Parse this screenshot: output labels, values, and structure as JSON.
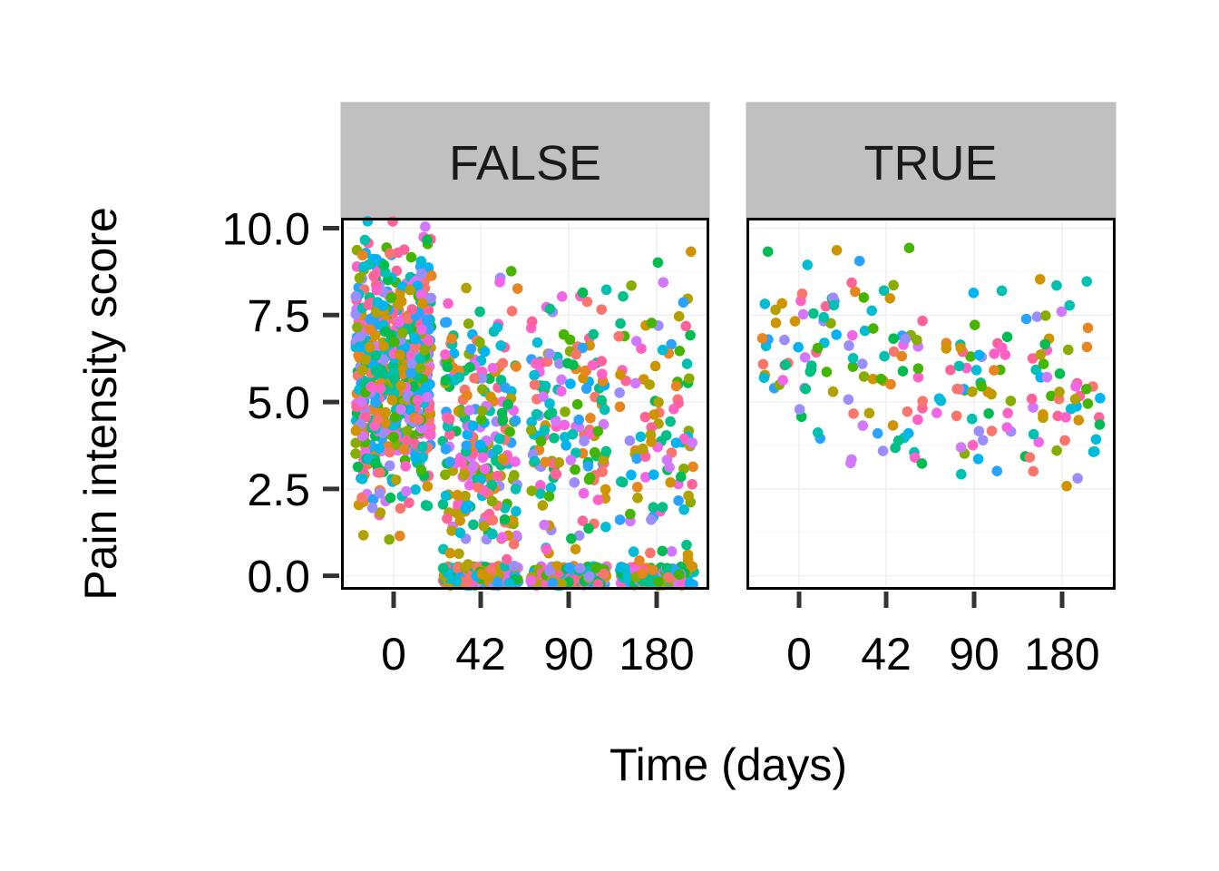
{
  "chart_data": {
    "type": "scatter",
    "jitter": true,
    "facet_by": "",
    "xlabel": "Time (days)",
    "ylabel": "Pain intensity score",
    "categories": [
      "0",
      "42",
      "90",
      "180"
    ],
    "y_ticks": [
      "0.0",
      "2.5",
      "5.0",
      "7.5",
      "10.0"
    ],
    "ylim": [
      -0.4,
      10.3
    ],
    "legend": "none",
    "grid": true,
    "colors": [
      "#F8766D",
      "#E7851E",
      "#D09400",
      "#B2A100",
      "#89AC00",
      "#45B500",
      "#00BC51",
      "#00C087",
      "#00C0B2",
      "#00BCD6",
      "#00B3F2",
      "#29A3FF",
      "#9C8DFF",
      "#D277FF",
      "#F166E8",
      "#FF61C7",
      "#FF6399"
    ],
    "panels": [
      {
        "strip": "FALSE",
        "groups": [
          {
            "x": "0",
            "n_points": 650,
            "y_range": [
              0.8,
              10.0
            ],
            "y_mean": 5.9,
            "y_sd": 1.8,
            "zero_fraction": 0.0
          },
          {
            "x": "42",
            "n_points": 420,
            "y_range": [
              0.0,
              9.0
            ],
            "y_mean": 3.6,
            "y_sd": 2.2,
            "zero_fraction": 0.42
          },
          {
            "x": "90",
            "n_points": 330,
            "y_range": [
              0.0,
              8.9
            ],
            "y_mean": 4.1,
            "y_sd": 2.3,
            "zero_fraction": 0.52
          },
          {
            "x": "180",
            "n_points": 240,
            "y_range": [
              0.0,
              9.7
            ],
            "y_mean": 3.9,
            "y_sd": 2.4,
            "zero_fraction": 0.55
          }
        ]
      },
      {
        "strip": "TRUE",
        "groups": [
          {
            "x": "0",
            "n_points": 50,
            "y_range": [
              2.2,
              9.4
            ],
            "y_mean": 6.9,
            "y_sd": 1.4,
            "zero_fraction": 0.0
          },
          {
            "x": "42",
            "n_points": 55,
            "y_range": [
              2.8,
              9.8
            ],
            "y_mean": 5.6,
            "y_sd": 1.8,
            "zero_fraction": 0.0
          },
          {
            "x": "90",
            "n_points": 50,
            "y_range": [
              2.6,
              8.4
            ],
            "y_mean": 5.1,
            "y_sd": 1.7,
            "zero_fraction": 0.0
          },
          {
            "x": "180",
            "n_points": 55,
            "y_range": [
              2.6,
              9.7
            ],
            "y_mean": 5.0,
            "y_sd": 1.8,
            "zero_fraction": 0.0
          }
        ]
      }
    ]
  }
}
